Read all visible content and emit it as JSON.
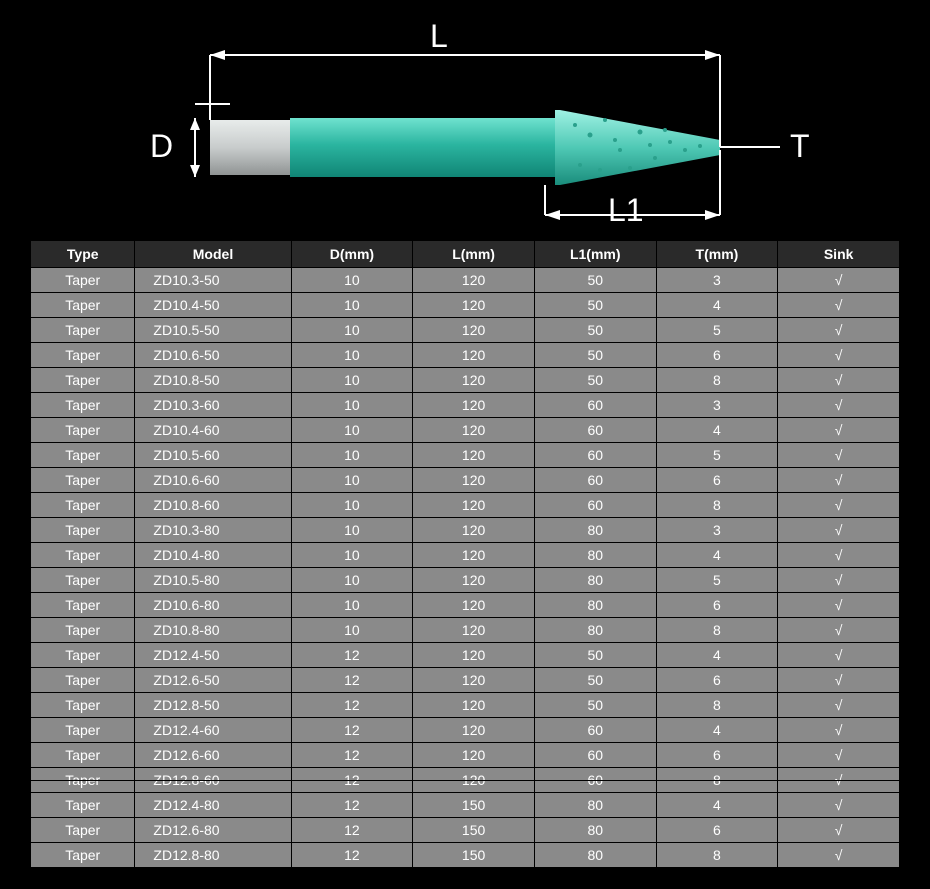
{
  "diagram": {
    "labels": {
      "L": "L",
      "L1": "L1",
      "D": "D",
      "T": "T"
    },
    "colors": {
      "shank": "#c8cccc",
      "body": "#2bb5a0",
      "tip": "#4fc9b5",
      "line": "#ffffff",
      "text": "#ffffff"
    }
  },
  "table": {
    "columns": [
      "Type",
      "Model",
      "D(mm)",
      "L(mm)",
      "L1(mm)",
      "T(mm)",
      "Sink"
    ],
    "col_classes": [
      "col-type",
      "col-model",
      "col-d",
      "col-l",
      "col-l1",
      "col-t",
      "col-sink"
    ],
    "rows": [
      [
        "Taper",
        "ZD10.3-50",
        "10",
        "120",
        "50",
        "3",
        "√"
      ],
      [
        "Taper",
        "ZD10.4-50",
        "10",
        "120",
        "50",
        "4",
        "√"
      ],
      [
        "Taper",
        "ZD10.5-50",
        "10",
        "120",
        "50",
        "5",
        "√"
      ],
      [
        "Taper",
        "ZD10.6-50",
        "10",
        "120",
        "50",
        "6",
        "√"
      ],
      [
        "Taper",
        "ZD10.8-50",
        "10",
        "120",
        "50",
        "8",
        "√"
      ],
      [
        "Taper",
        "ZD10.3-60",
        "10",
        "120",
        "60",
        "3",
        "√"
      ],
      [
        "Taper",
        "ZD10.4-60",
        "10",
        "120",
        "60",
        "4",
        "√"
      ],
      [
        "Taper",
        "ZD10.5-60",
        "10",
        "120",
        "60",
        "5",
        "√"
      ],
      [
        "Taper",
        "ZD10.6-60",
        "10",
        "120",
        "60",
        "6",
        "√"
      ],
      [
        "Taper",
        "ZD10.8-60",
        "10",
        "120",
        "60",
        "8",
        "√"
      ],
      [
        "Taper",
        "ZD10.3-80",
        "10",
        "120",
        "80",
        "3",
        "√"
      ],
      [
        "Taper",
        "ZD10.4-80",
        "10",
        "120",
        "80",
        "4",
        "√"
      ],
      [
        "Taper",
        "ZD10.5-80",
        "10",
        "120",
        "80",
        "5",
        "√"
      ],
      [
        "Taper",
        "ZD10.6-80",
        "10",
        "120",
        "80",
        "6",
        "√"
      ],
      [
        "Taper",
        "ZD10.8-80",
        "10",
        "120",
        "80",
        "8",
        "√"
      ],
      [
        "Taper",
        "ZD12.4-50",
        "12",
        "120",
        "50",
        "4",
        "√"
      ],
      [
        "Taper",
        "ZD12.6-50",
        "12",
        "120",
        "50",
        "6",
        "√"
      ],
      [
        "Taper",
        "ZD12.8-50",
        "12",
        "120",
        "50",
        "8",
        "√"
      ],
      [
        "Taper",
        "ZD12.4-60",
        "12",
        "120",
        "60",
        "4",
        "√"
      ],
      [
        "Taper",
        "ZD12.6-60",
        "12",
        "120",
        "60",
        "6",
        "√"
      ],
      [
        "Taper",
        "ZD12.8-60",
        "12",
        "120",
        "60",
        "8",
        "√"
      ],
      [
        "Taper",
        "ZD12.4-80",
        "12",
        "150",
        "80",
        "4",
        "√"
      ],
      [
        "Taper",
        "ZD12.6-80",
        "12",
        "150",
        "80",
        "6",
        "√"
      ],
      [
        "Taper",
        "ZD12.8-80",
        "12",
        "150",
        "80",
        "8",
        "√"
      ]
    ],
    "struck_row_index": 20
  }
}
